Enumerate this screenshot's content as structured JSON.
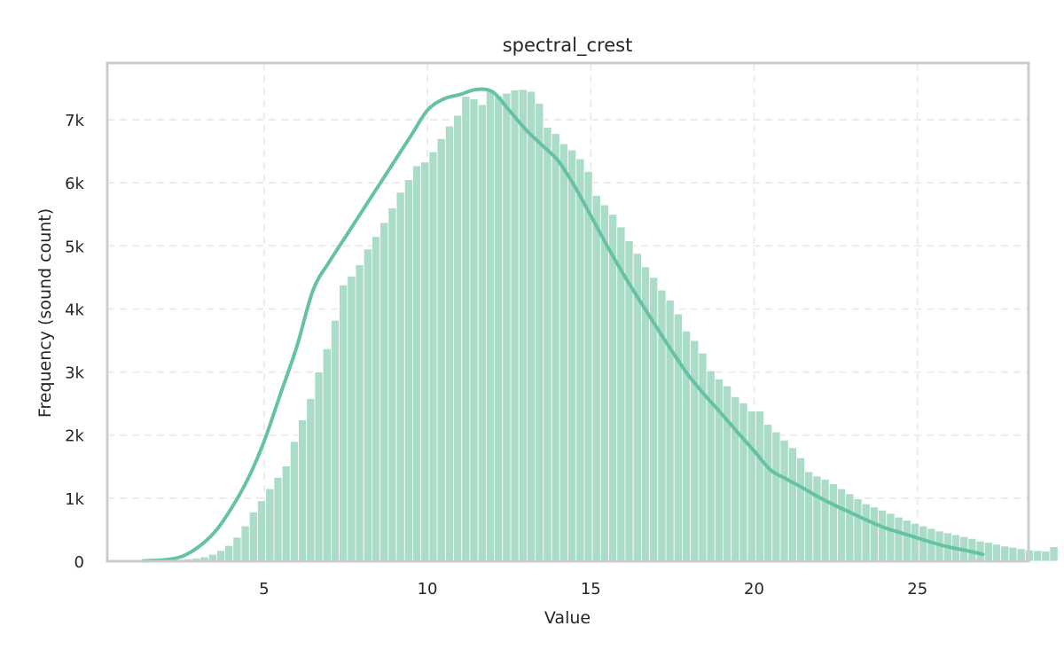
{
  "chart_data": {
    "type": "bar",
    "title": "spectral_crest",
    "xlabel": "Value",
    "ylabel": "Frequency (sound count)",
    "xlim": [
      0.2,
      28.4
    ],
    "ylim": [
      0,
      7900
    ],
    "x_ticks": [
      5,
      10,
      15,
      20,
      25
    ],
    "x_tick_labels": [
      "5",
      "10",
      "15",
      "20",
      "25"
    ],
    "y_ticks": [
      0,
      1000,
      2000,
      3000,
      4000,
      5000,
      6000,
      7000
    ],
    "y_tick_labels": [
      "0",
      "1k",
      "2k",
      "3k",
      "4k",
      "5k",
      "6k",
      "7k"
    ],
    "grid": true,
    "bin_start": 1.3,
    "bin_width": 0.25,
    "values": [
      10,
      12,
      15,
      20,
      28,
      38,
      50,
      70,
      110,
      170,
      250,
      380,
      560,
      780,
      960,
      1150,
      1330,
      1510,
      1900,
      2240,
      2580,
      3000,
      3370,
      3820,
      4380,
      4520,
      4700,
      4950,
      5150,
      5370,
      5600,
      5850,
      6050,
      6270,
      6330,
      6490,
      6700,
      6900,
      7070,
      7370,
      7330,
      7240,
      7460,
      7380,
      7420,
      7470,
      7480,
      7450,
      7260,
      6880,
      6780,
      6620,
      6520,
      6380,
      6180,
      5800,
      5650,
      5500,
      5300,
      5080,
      4880,
      4670,
      4500,
      4300,
      4140,
      3920,
      3650,
      3500,
      3300,
      3020,
      2890,
      2780,
      2610,
      2510,
      2380,
      2380,
      2170,
      2050,
      1920,
      1800,
      1640,
      1420,
      1350,
      1300,
      1230,
      1150,
      1070,
      990,
      910,
      860,
      810,
      760,
      700,
      650,
      600,
      560,
      520,
      480,
      450,
      420,
      390,
      360,
      320,
      300,
      270,
      240,
      220,
      200,
      180,
      170,
      160,
      230
    ],
    "kde": [
      [
        1.3,
        5
      ],
      [
        2.0,
        25
      ],
      [
        2.5,
        80
      ],
      [
        3.0,
        230
      ],
      [
        3.5,
        470
      ],
      [
        4.0,
        840
      ],
      [
        4.5,
        1300
      ],
      [
        5.0,
        1900
      ],
      [
        5.5,
        2650
      ],
      [
        6.0,
        3400
      ],
      [
        6.5,
        4300
      ],
      [
        7.0,
        4750
      ],
      [
        7.5,
        5150
      ],
      [
        8.0,
        5550
      ],
      [
        8.5,
        5950
      ],
      [
        9.0,
        6350
      ],
      [
        9.5,
        6750
      ],
      [
        10.0,
        7150
      ],
      [
        10.5,
        7330
      ],
      [
        11.0,
        7400
      ],
      [
        11.5,
        7480
      ],
      [
        12.0,
        7440
      ],
      [
        12.5,
        7150
      ],
      [
        13.0,
        6850
      ],
      [
        13.5,
        6600
      ],
      [
        14.0,
        6350
      ],
      [
        14.5,
        5950
      ],
      [
        15.0,
        5480
      ],
      [
        15.5,
        5000
      ],
      [
        16.0,
        4550
      ],
      [
        16.5,
        4130
      ],
      [
        17.0,
        3720
      ],
      [
        17.5,
        3320
      ],
      [
        18.0,
        2940
      ],
      [
        18.5,
        2630
      ],
      [
        19.0,
        2340
      ],
      [
        19.5,
        2040
      ],
      [
        20.0,
        1750
      ],
      [
        20.5,
        1450
      ],
      [
        21.0,
        1300
      ],
      [
        21.5,
        1160
      ],
      [
        22.0,
        1010
      ],
      [
        22.5,
        880
      ],
      [
        23.0,
        760
      ],
      [
        23.5,
        640
      ],
      [
        24.0,
        530
      ],
      [
        24.5,
        450
      ],
      [
        25.0,
        370
      ],
      [
        25.5,
        290
      ],
      [
        26.0,
        220
      ],
      [
        26.5,
        170
      ],
      [
        27.0,
        110
      ]
    ],
    "colors": {
      "bar": "#abdcc8",
      "kde": "#66c2a5",
      "grid": "#ececec",
      "frame": "#cccccc"
    }
  }
}
